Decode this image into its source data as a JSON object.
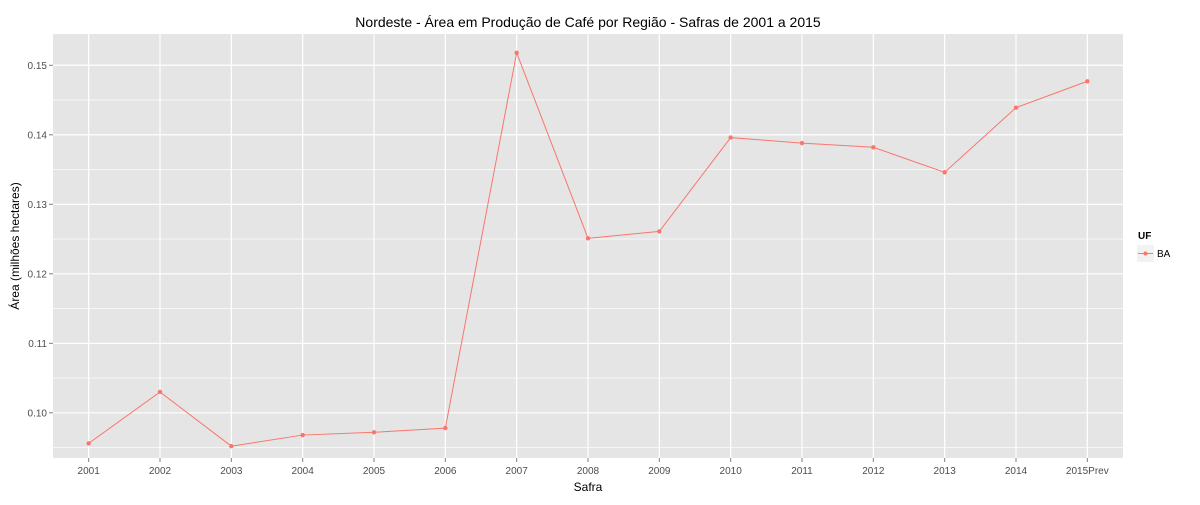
{
  "chart_data": {
    "type": "line",
    "title": "Nordeste  - Área em Produção de Café por Região - Safras de 2001 a 2015",
    "xlabel": "Safra",
    "ylabel": "Área (milhões hectares)",
    "categories": [
      "2001",
      "2002",
      "2003",
      "2004",
      "2005",
      "2006",
      "2007",
      "2008",
      "2009",
      "2010",
      "2011",
      "2012",
      "2013",
      "2014",
      "2015Prev"
    ],
    "series": [
      {
        "name": "BA",
        "color": "#F8766D",
        "values": [
          0.0956,
          0.103,
          0.0952,
          0.0968,
          0.0972,
          0.0978,
          0.1518,
          0.1251,
          0.1261,
          0.1396,
          0.1388,
          0.1382,
          0.1346,
          0.1439,
          0.1477
        ]
      }
    ],
    "ylim": [
      0.0935,
      0.1545
    ],
    "yticks": [
      0.1,
      0.11,
      0.12,
      0.13,
      0.14,
      0.15
    ],
    "ytick_labels": [
      "0.10",
      "0.11",
      "0.12",
      "0.13",
      "0.14",
      "0.15"
    ],
    "grid": true,
    "legend": {
      "title": "UF",
      "position": "right"
    },
    "colors": {
      "panel_background": "#E5E5E5",
      "grid": "#FFFFFF",
      "series": "#F8766D"
    }
  }
}
